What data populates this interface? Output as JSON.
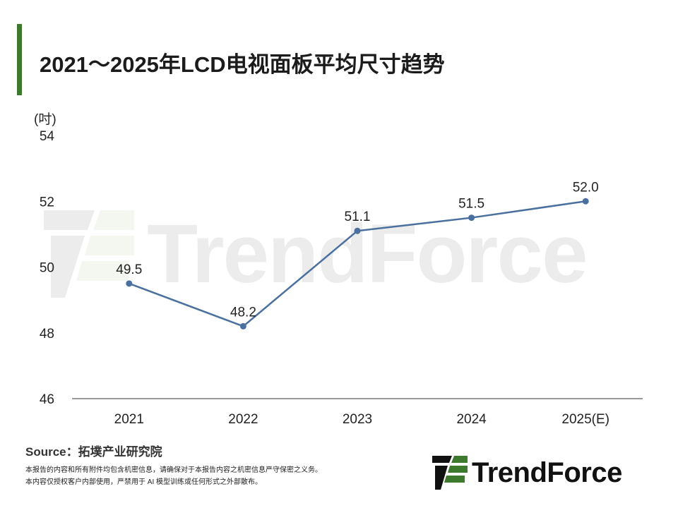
{
  "header": {
    "title": "2021～2025年LCD电视面板平均尺寸趋势"
  },
  "colors": {
    "accent": "#3e7a2e",
    "line": "#4a70a0",
    "axis": "#333333",
    "logo_green": "#3e7a2e"
  },
  "chart_data": {
    "type": "line",
    "title": "2021～2025年LCD电视面板平均尺寸趋势",
    "ylabel": "(吋)",
    "xlabel": "",
    "categories": [
      "2021",
      "2022",
      "2023",
      "2024",
      "2025(E)"
    ],
    "series": [
      {
        "values": [
          49.5,
          48.2,
          51.1,
          51.5,
          52.0
        ]
      }
    ],
    "data_labels": [
      "49.5",
      "48.2",
      "51.1",
      "51.5",
      "52.0"
    ],
    "ylim": [
      46,
      54
    ],
    "yticks": [
      "46",
      "48",
      "50",
      "52",
      "54"
    ],
    "grid": false,
    "legend": "none"
  },
  "footer": {
    "source": "Source：拓墣产业研究院",
    "disclaimer_line1": "本报告的内容和所有附件均包含机密信息，请确保对于本报告内容之机密信息严守保密之义务。",
    "disclaimer_line2": "本内容仅授权客户内部使用，严禁用于 AI 模型训练或任何形式之外部散布。"
  },
  "logo": {
    "text": "TrendForce",
    "icon": "trendforce-logo-icon"
  }
}
